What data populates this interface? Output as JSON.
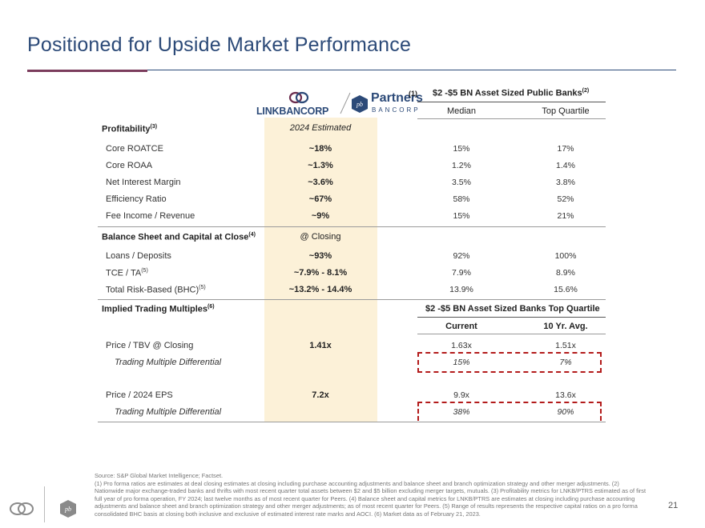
{
  "title": "Positioned for Upside Market Performance",
  "logos": {
    "linkbancorp": "LINKBANCORP",
    "partners_word": "Partners",
    "partners_sub": "BANCORP",
    "footnote_ref": "(1)"
  },
  "peer_header": {
    "text": "$2 -$5 BN Asset Sized Public Banks",
    "sup": "(2)"
  },
  "columns": {
    "median": "Median",
    "top_quartile": "Top Quartile"
  },
  "profitability": {
    "label": "Profitability",
    "sup": "(3)",
    "col_header": "2024 Estimated",
    "rows": [
      {
        "label": "Core ROATCE",
        "value": "~18%",
        "median": "15%",
        "top": "17%"
      },
      {
        "label": "Core ROAA",
        "value": "~1.3%",
        "median": "1.2%",
        "top": "1.4%"
      },
      {
        "label": "Net Interest Margin",
        "value": "~3.6%",
        "median": "3.5%",
        "top": "3.8%"
      },
      {
        "label": "Efficiency Ratio",
        "value": "~67%",
        "median": "58%",
        "top": "52%"
      },
      {
        "label": "Fee Income / Revenue",
        "value": "~9%",
        "median": "15%",
        "top": "21%"
      }
    ]
  },
  "balance": {
    "label": "Balance Sheet and Capital at Close",
    "sup": "(4)",
    "col_header": "@ Closing",
    "rows": [
      {
        "label": "Loans / Deposits",
        "sup": "",
        "value": "~93%",
        "median": "92%",
        "top": "100%"
      },
      {
        "label": "TCE / TA",
        "sup": "(5)",
        "value": "~7.9% - 8.1%",
        "median": "7.9%",
        "top": "8.9%"
      },
      {
        "label": "Total Risk-Based (BHC)",
        "sup": "(5)",
        "value": "~13.2% - 14.4%",
        "median": "13.9%",
        "top": "15.6%"
      }
    ]
  },
  "trading": {
    "label": "Implied Trading Multiples",
    "sup": "(6)",
    "peer_header": "$2 -$5 BN Asset Sized Banks Top Quartile",
    "col_current": "Current",
    "col_10yr": "10 Yr. Avg.",
    "rows": [
      {
        "label": "Price / TBV @ Closing",
        "value": "1.41x",
        "current": "1.63x",
        "avg10": "1.51x",
        "diff_label": "Trading Multiple Differential",
        "diff_current": "15%",
        "diff_avg10": "7%"
      },
      {
        "label": "Price / 2024 EPS",
        "value": "7.2x",
        "current": "9.9x",
        "avg10": "13.6x",
        "diff_label": "Trading Multiple Differential",
        "diff_current": "38%",
        "diff_avg10": "90%"
      }
    ]
  },
  "footer": {
    "source": "Source: S&P Global Market Intelligence; Factset.",
    "notes": "(1) Pro forma ratios are estimates at deal closing estimates at closing including purchase accounting adjustments and balance sheet and branch optimization strategy and other merger adjustments. (2) Nationwide major exchange-traded banks and thrifts with most recent quarter total assets between $2 and $5 billion excluding merger targets, mutuals. (3) Profitability metrics for LNKB/PTRS estimated as of first full year of pro forma operation, FY 2024; last twelve months as of most recent quarter for Peers. (4) Balance sheet and capital metrics for LNKB/PTRS are estimates at closing including purchase accounting adjustments and balance sheet and branch optimization strategy and other merger adjustments; as of most recent quarter for Peers. (5) Range of results represents the respective capital ratios on a pro forma consolidated BHC basis at closing both inclusive and exclusive of estimated interest rate marks and AOCI. (6) Market data as of February 21, 2023."
  },
  "page_number": "21",
  "colors": {
    "title": "#2c4a78",
    "accent": "#7b3c5c",
    "highlight": "#fcf1d8",
    "dash": "#b31b1b"
  }
}
